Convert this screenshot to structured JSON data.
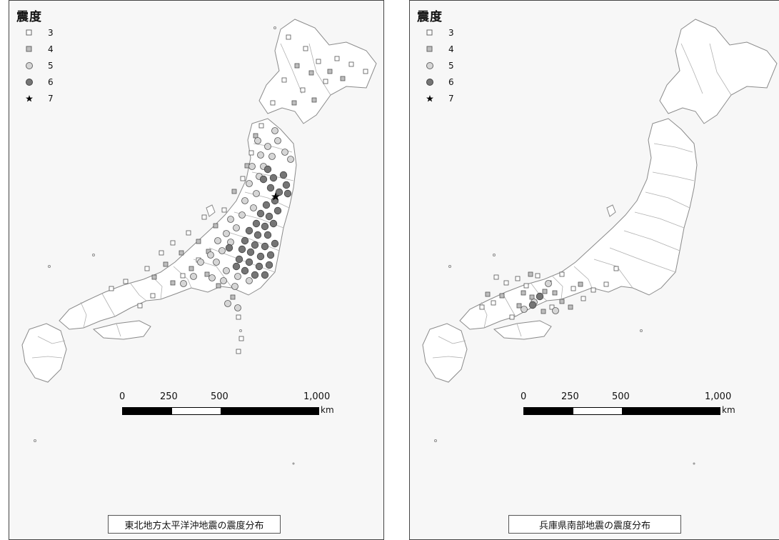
{
  "legend": {
    "title": "震度",
    "items": [
      {
        "label": "3",
        "symbol": "square",
        "fill": "#ffffff"
      },
      {
        "label": "4",
        "symbol": "square",
        "fill": "#bdbdbd"
      },
      {
        "label": "5",
        "symbol": "circle",
        "fill": "#d6d6d6"
      },
      {
        "label": "6",
        "symbol": "circle",
        "fill": "#757575"
      },
      {
        "label": "7",
        "symbol": "star",
        "fill": "#000000"
      }
    ]
  },
  "scale": {
    "ticks": [
      "0",
      "250",
      "500",
      "1,000"
    ],
    "unit": "km"
  },
  "maps": [
    {
      "caption": "東北地方太平洋沖地震の震度分布"
    },
    {
      "caption": "兵庫県南部地震の震度分布"
    }
  ],
  "colors": {
    "land": "#ffffff",
    "border": "#8a8a8a",
    "background": "#f7f7f7"
  }
}
